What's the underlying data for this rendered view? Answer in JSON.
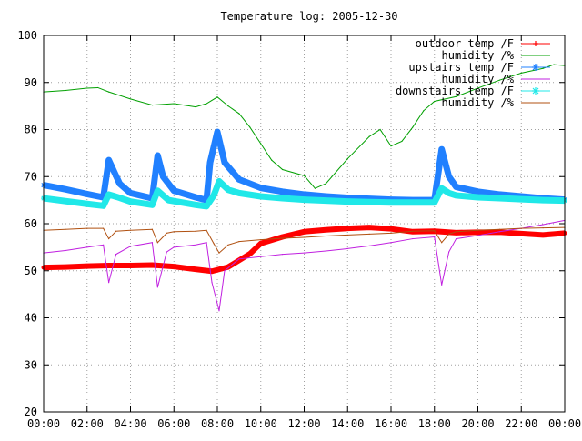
{
  "chart_data": {
    "type": "line",
    "title": "Temperature log: 2005-12-30",
    "xlabel": "",
    "ylabel": "",
    "xlim": [
      "00:00",
      "24:00"
    ],
    "ylim": [
      20,
      100
    ],
    "grid": true,
    "legend_position": "top-right",
    "x_tick_labels": [
      "00:00",
      "02:00",
      "04:00",
      "06:00",
      "08:00",
      "10:00",
      "12:00",
      "14:00",
      "16:00",
      "18:00",
      "20:00",
      "22:00",
      "00:00"
    ],
    "y_tick_labels": [
      "20",
      "30",
      "40",
      "50",
      "60",
      "70",
      "80",
      "90",
      "100"
    ],
    "y_ticks": [
      20,
      30,
      40,
      50,
      60,
      70,
      80,
      90,
      100
    ],
    "series": [
      {
        "name": "outdoor temp /F",
        "color": "#ff0000",
        "style": "thick-points",
        "points": [
          [
            "00:00",
            50.7
          ],
          [
            "01:00",
            50.8
          ],
          [
            "02:00",
            51.0
          ],
          [
            "03:00",
            51.1
          ],
          [
            "04:00",
            51.1
          ],
          [
            "05:00",
            51.2
          ],
          [
            "06:00",
            50.9
          ],
          [
            "07:00",
            50.3
          ],
          [
            "07:45",
            49.9
          ],
          [
            "08:30",
            50.8
          ],
          [
            "09:30",
            53.6
          ],
          [
            "10:00",
            55.8
          ],
          [
            "11:00",
            57.2
          ],
          [
            "12:00",
            58.3
          ],
          [
            "13:00",
            58.7
          ],
          [
            "14:00",
            59.0
          ],
          [
            "15:00",
            59.2
          ],
          [
            "16:00",
            58.9
          ],
          [
            "17:00",
            58.3
          ],
          [
            "18:00",
            58.4
          ],
          [
            "19:00",
            58.1
          ],
          [
            "20:00",
            58.2
          ],
          [
            "21:00",
            58.2
          ],
          [
            "22:00",
            57.9
          ],
          [
            "23:00",
            57.6
          ],
          [
            "24:00",
            58.0
          ]
        ]
      },
      {
        "name": "humidity /%",
        "color": "#00a000",
        "style": "line",
        "points": [
          [
            "00:00",
            88
          ],
          [
            "01:00",
            88.3
          ],
          [
            "02:00",
            88.8
          ],
          [
            "02:30",
            88.9
          ],
          [
            "03:00",
            88.0
          ],
          [
            "04:00",
            86.5
          ],
          [
            "05:00",
            85.2
          ],
          [
            "06:00",
            85.5
          ],
          [
            "07:00",
            84.8
          ],
          [
            "07:30",
            85.5
          ],
          [
            "08:00",
            86.9
          ],
          [
            "08:30",
            85.0
          ],
          [
            "09:00",
            83.4
          ],
          [
            "09:30",
            80.5
          ],
          [
            "10:00",
            77.0
          ],
          [
            "10:30",
            73.5
          ],
          [
            "11:00",
            71.5
          ],
          [
            "12:00",
            70.2
          ],
          [
            "12:30",
            67.5
          ],
          [
            "13:00",
            68.5
          ],
          [
            "14:00",
            73.8
          ],
          [
            "15:00",
            78.5
          ],
          [
            "15:30",
            80.0
          ],
          [
            "16:00",
            76.5
          ],
          [
            "16:30",
            77.5
          ],
          [
            "17:00",
            80.5
          ],
          [
            "17:30",
            84.0
          ],
          [
            "18:00",
            86.0
          ],
          [
            "19:00",
            87.0
          ],
          [
            "20:00",
            88.8
          ],
          [
            "21:00",
            90.5
          ],
          [
            "22:00",
            92.0
          ],
          [
            "23:00",
            93.0
          ],
          [
            "23:30",
            93.8
          ],
          [
            "24:00",
            93.6
          ]
        ]
      },
      {
        "name": "upstairs temp /F",
        "color": "#2080ff",
        "style": "star-points",
        "points": [
          [
            "00:00",
            68.2
          ],
          [
            "01:00",
            67.3
          ],
          [
            "02:00",
            66.3
          ],
          [
            "02:45",
            65.6
          ],
          [
            "03:00",
            73.5
          ],
          [
            "03:30",
            68.5
          ],
          [
            "04:00",
            66.5
          ],
          [
            "05:00",
            65.4
          ],
          [
            "05:15",
            74.5
          ],
          [
            "05:30",
            70.0
          ],
          [
            "06:00",
            67.0
          ],
          [
            "07:00",
            65.6
          ],
          [
            "07:30",
            65.0
          ],
          [
            "07:40",
            73.0
          ],
          [
            "08:00",
            79.5
          ],
          [
            "08:20",
            73.0
          ],
          [
            "09:00",
            69.4
          ],
          [
            "10:00",
            67.6
          ],
          [
            "11:00",
            66.8
          ],
          [
            "12:00",
            66.2
          ],
          [
            "13:00",
            65.8
          ],
          [
            "14:00",
            65.5
          ],
          [
            "15:00",
            65.3
          ],
          [
            "16:00",
            65.1
          ],
          [
            "17:00",
            65.0
          ],
          [
            "18:00",
            65.0
          ],
          [
            "18:20",
            75.8
          ],
          [
            "18:40",
            70.0
          ],
          [
            "19:00",
            67.8
          ],
          [
            "20:00",
            66.8
          ],
          [
            "21:00",
            66.2
          ],
          [
            "22:00",
            65.8
          ],
          [
            "23:00",
            65.4
          ],
          [
            "24:00",
            65.1
          ]
        ]
      },
      {
        "name": "humidity /%",
        "color": "#c020e0",
        "style": "line",
        "points": [
          [
            "00:00",
            53.8
          ],
          [
            "01:00",
            54.3
          ],
          [
            "02:00",
            55.0
          ],
          [
            "02:45",
            55.5
          ],
          [
            "03:00",
            47.5
          ],
          [
            "03:20",
            53.5
          ],
          [
            "04:00",
            55.2
          ],
          [
            "05:00",
            56.0
          ],
          [
            "05:15",
            46.5
          ],
          [
            "05:40",
            54.0
          ],
          [
            "06:00",
            55.0
          ],
          [
            "07:00",
            55.5
          ],
          [
            "07:30",
            56.0
          ],
          [
            "07:45",
            47.5
          ],
          [
            "08:05",
            41.5
          ],
          [
            "08:20",
            50.0
          ],
          [
            "09:00",
            52.5
          ],
          [
            "10:00",
            53.0
          ],
          [
            "11:00",
            53.5
          ],
          [
            "12:00",
            53.8
          ],
          [
            "13:00",
            54.2
          ],
          [
            "14:00",
            54.7
          ],
          [
            "15:00",
            55.3
          ],
          [
            "16:00",
            56.0
          ],
          [
            "17:00",
            56.8
          ],
          [
            "18:00",
            57.2
          ],
          [
            "18:20",
            47.0
          ],
          [
            "18:40",
            54.0
          ],
          [
            "19:00",
            56.8
          ],
          [
            "20:00",
            57.5
          ],
          [
            "21:00",
            58.3
          ],
          [
            "22:00",
            59.0
          ],
          [
            "23:00",
            59.8
          ],
          [
            "24:00",
            60.7
          ]
        ]
      },
      {
        "name": "downstairs temp /F",
        "color": "#20e8e8",
        "style": "star-points",
        "points": [
          [
            "00:00",
            65.4
          ],
          [
            "01:00",
            64.8
          ],
          [
            "02:00",
            64.2
          ],
          [
            "02:45",
            63.8
          ],
          [
            "03:00",
            66.2
          ],
          [
            "03:30",
            65.5
          ],
          [
            "04:00",
            64.7
          ],
          [
            "05:00",
            64.0
          ],
          [
            "05:15",
            67.0
          ],
          [
            "05:45",
            65.0
          ],
          [
            "06:00",
            64.8
          ],
          [
            "07:00",
            64.0
          ],
          [
            "07:30",
            63.7
          ],
          [
            "07:50",
            66.0
          ],
          [
            "08:05",
            69.0
          ],
          [
            "08:30",
            67.2
          ],
          [
            "09:00",
            66.5
          ],
          [
            "10:00",
            65.8
          ],
          [
            "11:00",
            65.4
          ],
          [
            "12:00",
            65.1
          ],
          [
            "13:00",
            64.9
          ],
          [
            "14:00",
            64.7
          ],
          [
            "15:00",
            64.6
          ],
          [
            "16:00",
            64.5
          ],
          [
            "17:00",
            64.5
          ],
          [
            "18:00",
            64.5
          ],
          [
            "18:20",
            67.5
          ],
          [
            "18:40",
            66.5
          ],
          [
            "19:00",
            66.0
          ],
          [
            "20:00",
            65.6
          ],
          [
            "21:00",
            65.4
          ],
          [
            "22:00",
            65.2
          ],
          [
            "23:00",
            65.0
          ],
          [
            "24:00",
            64.9
          ]
        ]
      },
      {
        "name": "humidity /%",
        "color": "#b05010",
        "style": "line",
        "points": [
          [
            "00:00",
            58.6
          ],
          [
            "01:00",
            58.8
          ],
          [
            "02:00",
            59.0
          ],
          [
            "02:45",
            59.0
          ],
          [
            "03:00",
            56.8
          ],
          [
            "03:20",
            58.4
          ],
          [
            "04:00",
            58.6
          ],
          [
            "05:00",
            58.8
          ],
          [
            "05:15",
            56.0
          ],
          [
            "05:40",
            58.0
          ],
          [
            "06:00",
            58.3
          ],
          [
            "07:00",
            58.4
          ],
          [
            "07:30",
            58.6
          ],
          [
            "07:50",
            55.8
          ],
          [
            "08:05",
            53.8
          ],
          [
            "08:30",
            55.5
          ],
          [
            "09:00",
            56.2
          ],
          [
            "10:00",
            56.6
          ],
          [
            "11:00",
            56.9
          ],
          [
            "12:00",
            57.1
          ],
          [
            "13:00",
            57.4
          ],
          [
            "14:00",
            57.6
          ],
          [
            "15:00",
            57.8
          ],
          [
            "16:00",
            58.0
          ],
          [
            "17:00",
            58.4
          ],
          [
            "18:00",
            58.5
          ],
          [
            "18:20",
            56.0
          ],
          [
            "18:40",
            57.8
          ],
          [
            "19:00",
            58.3
          ],
          [
            "20:00",
            58.6
          ],
          [
            "21:00",
            58.8
          ],
          [
            "22:00",
            59.0
          ],
          [
            "23:00",
            59.1
          ],
          [
            "24:00",
            59.2
          ]
        ]
      }
    ]
  }
}
